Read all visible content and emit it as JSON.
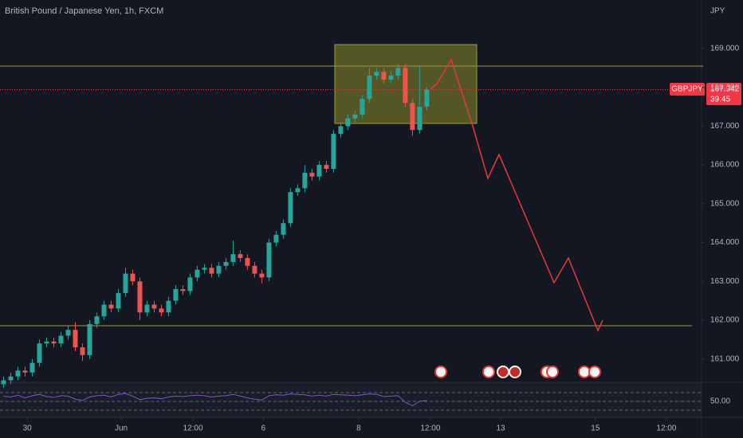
{
  "chart_data": {
    "type": "candlestick",
    "title": "British Pound / Japanese Yen, 1h, FXCM",
    "currency": "JPY",
    "symbol": "GBPJPY",
    "last_price": 167.942,
    "countdown": "39:45",
    "up_color": "#26a69a",
    "down_color": "#ef5350",
    "open": [
      160.35,
      160.45,
      160.55,
      160.7,
      160.65,
      160.9,
      161.4,
      161.45,
      161.4,
      161.6,
      161.75,
      161.3,
      161.1,
      161.9,
      162.1,
      162.4,
      162.3,
      162.7,
      163.2,
      163.0,
      162.2,
      162.4,
      162.3,
      162.2,
      162.5,
      162.8,
      162.75,
      163.1,
      163.3,
      163.35,
      163.2,
      163.4,
      163.5,
      163.7,
      163.6,
      163.4,
      163.2,
      163.1,
      164.0,
      164.2,
      164.5,
      165.3,
      165.4,
      165.8,
      165.7,
      166.0,
      165.9,
      166.8,
      167.0,
      167.2,
      167.3,
      167.7,
      168.3,
      168.4,
      168.2,
      168.3,
      168.5,
      167.6,
      166.9,
      167.5
    ],
    "high": [
      160.55,
      160.65,
      160.8,
      160.8,
      161.0,
      161.5,
      161.55,
      161.55,
      161.7,
      161.85,
      161.95,
      161.4,
      162.0,
      162.2,
      162.5,
      162.5,
      162.8,
      163.35,
      163.3,
      163.1,
      162.5,
      162.5,
      162.4,
      162.6,
      162.9,
      162.9,
      163.2,
      163.4,
      163.45,
      163.45,
      163.5,
      163.6,
      164.05,
      163.8,
      163.7,
      163.5,
      163.3,
      164.1,
      164.3,
      164.6,
      165.4,
      165.5,
      166.0,
      165.9,
      166.1,
      166.1,
      166.9,
      167.1,
      167.3,
      167.4,
      167.8,
      168.5,
      168.5,
      168.5,
      168.4,
      168.6,
      168.6,
      167.7,
      168.55,
      168.0
    ],
    "low": [
      160.25,
      160.35,
      160.45,
      160.55,
      160.55,
      160.8,
      161.3,
      161.3,
      161.3,
      161.5,
      161.2,
      160.95,
      161.0,
      161.8,
      162.0,
      162.2,
      162.2,
      162.6,
      162.9,
      162.0,
      162.1,
      162.2,
      162.1,
      162.1,
      162.4,
      162.65,
      162.65,
      163.0,
      163.2,
      163.1,
      163.1,
      163.3,
      163.4,
      163.5,
      163.3,
      163.1,
      162.95,
      163.0,
      163.9,
      164.1,
      164.4,
      165.2,
      165.3,
      165.6,
      165.6,
      165.8,
      165.8,
      166.7,
      166.9,
      167.1,
      167.2,
      167.6,
      168.2,
      168.1,
      168.1,
      168.2,
      167.5,
      166.75,
      166.8,
      167.4
    ],
    "close": [
      160.45,
      160.55,
      160.7,
      160.65,
      160.9,
      161.4,
      161.45,
      161.4,
      161.6,
      161.75,
      161.3,
      161.1,
      161.9,
      162.1,
      162.4,
      162.3,
      162.7,
      163.2,
      163.0,
      162.2,
      162.4,
      162.3,
      162.2,
      162.5,
      162.8,
      162.75,
      163.1,
      163.3,
      163.35,
      163.2,
      163.4,
      163.5,
      163.7,
      163.6,
      163.4,
      163.2,
      163.1,
      164.0,
      164.2,
      164.5,
      165.3,
      165.4,
      165.8,
      165.7,
      166.0,
      165.9,
      166.8,
      167.0,
      167.2,
      167.3,
      167.7,
      168.3,
      168.4,
      168.2,
      168.3,
      168.5,
      167.6,
      166.9,
      167.5,
      167.94
    ],
    "xlim": [
      -0.5,
      97.3
    ],
    "xticks": [
      {
        "value": 3.3,
        "label": "30"
      },
      {
        "value": 16.4,
        "label": "Jun"
      },
      {
        "value": 26.4,
        "label": "12:00"
      },
      {
        "value": 36.2,
        "label": "6"
      },
      {
        "value": 49.5,
        "label": "8"
      },
      {
        "value": 59.5,
        "label": "12:00"
      },
      {
        "value": 69.3,
        "label": "13"
      },
      {
        "value": 82.5,
        "label": "15"
      },
      {
        "value": 92.4,
        "label": "12:00"
      }
    ],
    "ylim": [
      160.4,
      170.25
    ],
    "yticks": [
      {
        "value": 161,
        "label": "161.000"
      },
      {
        "value": 162,
        "label": "162.000"
      },
      {
        "value": 163,
        "label": "163.000"
      },
      {
        "value": 164,
        "label": "164.000"
      },
      {
        "value": 165,
        "label": "165.000"
      },
      {
        "value": 166,
        "label": "166.000"
      },
      {
        "value": 167,
        "label": "167.000"
      },
      {
        "value": 168,
        "label": "168.000"
      },
      {
        "value": 169,
        "label": "169.000"
      }
    ],
    "rsi_color": "#7e57c2",
    "rsi_values": [
      62,
      60,
      64,
      58,
      63,
      66,
      61,
      59,
      63,
      62,
      55,
      52,
      60,
      63,
      64,
      60,
      66,
      68,
      62,
      54,
      57,
      58,
      56,
      60,
      62,
      61,
      63,
      64,
      63,
      60,
      62,
      63,
      66,
      62,
      58,
      55,
      53,
      63,
      65,
      64,
      67,
      66,
      65,
      62,
      64,
      62,
      66,
      65,
      64,
      63,
      65,
      67,
      66,
      61,
      62,
      63,
      48,
      40,
      50,
      52
    ],
    "rsi_ylim": [
      10,
      90
    ],
    "rsi_yticks": [
      {
        "value": 50,
        "label": "50.00"
      }
    ]
  }
}
